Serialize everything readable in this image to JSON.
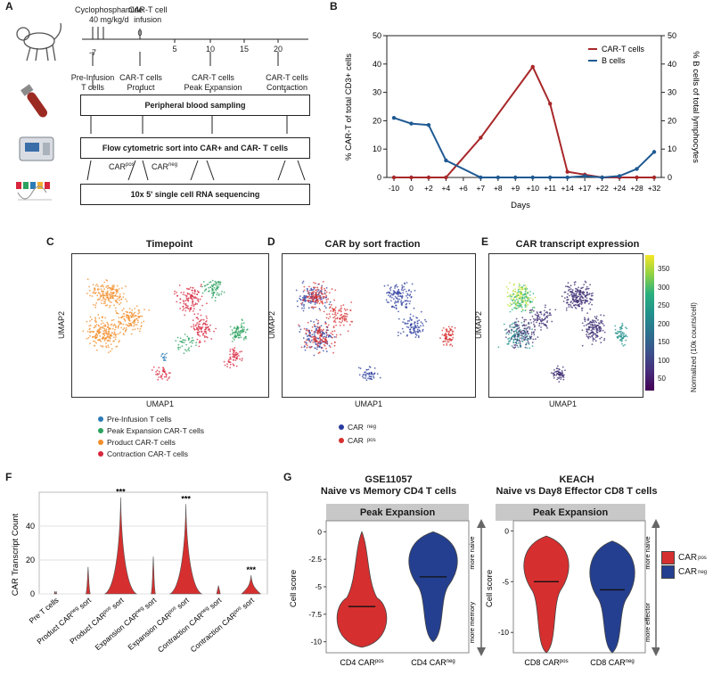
{
  "panels": {
    "A": "A",
    "B": "B",
    "C": "C",
    "D": "D",
    "E": "E",
    "F": "F",
    "G": "G"
  },
  "panel_a": {
    "cyclo_line1": "Cyclophosphamide",
    "cyclo_line2": "40 mg/kg/d",
    "cart_inf_line1": "CAR-T cell",
    "cart_inf_line2": "infusion",
    "ticks": [
      "-7",
      "0",
      "5",
      "10",
      "15",
      "20"
    ],
    "stages": [
      {
        "l1": "Pre-Infusion",
        "l2": "T cells"
      },
      {
        "l1": "CAR-T cells",
        "l2": "Product"
      },
      {
        "l1": "CAR-T cells",
        "l2": "Peak Expansion"
      },
      {
        "l1": "CAR-T cells",
        "l2": "Contraction"
      }
    ],
    "box1": "Peripheral blood sampling",
    "box2": "Flow cytometric sort into CAR+ and CAR- T cells",
    "box3": "10x 5' single cell RNA sequencing",
    "car_pos": "CAR",
    "car_pos_sup": "pos",
    "car_neg": "CAR",
    "car_neg_sup": "neg"
  },
  "chart_data": [
    {
      "id": "B",
      "type": "line",
      "categories": [
        "-10",
        "0",
        "+2",
        "+4",
        "+6",
        "+7",
        "+8",
        "+9",
        "+10",
        "+11",
        "+14",
        "+17",
        "+22",
        "+24",
        "+28",
        "+32"
      ],
      "series": [
        {
          "name": "CAR-T cells",
          "color": "#a8282a",
          "values": [
            0,
            0,
            0,
            0,
            null,
            14,
            null,
            null,
            39,
            26,
            2,
            1,
            0,
            0,
            0,
            0
          ]
        },
        {
          "name": "B cells",
          "color": "#1f5a93",
          "values": [
            21,
            19,
            18.5,
            6,
            null,
            0,
            0,
            0,
            0,
            0,
            0,
            0.5,
            0,
            0.5,
            3,
            9
          ]
        }
      ],
      "xlabel": "Days",
      "ylabel": "% CAR-T of total CD3+ cells",
      "ylabel_right": "% B cells of total lymphocytes",
      "ylim": [
        0,
        50
      ],
      "yticks": [
        0,
        10,
        20,
        30,
        40,
        50
      ],
      "legend": "top-right"
    },
    {
      "id": "F",
      "type": "violin",
      "categories": [
        "Pre T cells",
        "Product CARneg sort",
        "Product CARpos sort",
        "Expansion CARneg sort",
        "Expansion CARpos sort",
        "Contraction CARneg sort",
        "Contraction CARpos sort"
      ],
      "category_labels": [
        {
          "a": "Pre T cells",
          "sup": "",
          "b": ""
        },
        {
          "a": "Product CAR",
          "sup": "neg",
          "b": " sort"
        },
        {
          "a": "Product CAR",
          "sup": "pos",
          "b": " sort"
        },
        {
          "a": "Expansion CAR",
          "sup": "neg",
          "b": " sort"
        },
        {
          "a": "Expansion CAR",
          "sup": "pos",
          "b": " sort"
        },
        {
          "a": "Contraction CAR",
          "sup": "neg",
          "b": " sort"
        },
        {
          "a": "Contraction CAR",
          "sup": "pos",
          "b": " sort"
        }
      ],
      "max_values": [
        0.5,
        16,
        57,
        22,
        53,
        5,
        11
      ],
      "body_width": [
        0.02,
        0.08,
        0.95,
        0.08,
        0.95,
        0.06,
        0.55
      ],
      "significance": [
        "",
        "",
        "***",
        "",
        "***",
        "",
        "***"
      ],
      "ylabel": "CAR Transcript Count",
      "ylim": [
        0,
        60
      ],
      "yticks": [
        0,
        20,
        40
      ],
      "color": "#d62f2f"
    },
    {
      "id": "G1",
      "type": "violin",
      "title_line1": "GSE11057",
      "title_line2": "Naive vs Memory CD4 T cells",
      "strip": "Peak Expansion",
      "ylabel": "Cell score",
      "ylim": [
        -11,
        1
      ],
      "yticks": [
        0,
        -2.5,
        -5,
        -7.5,
        -10
      ],
      "ytick_labels": [
        "0",
        "-2.5",
        "-5",
        "-7.5",
        "-10"
      ],
      "groups": [
        {
          "label": "CD4 CAR",
          "sup": "pos",
          "color": "#d62f2f",
          "min": -10.5,
          "max": 0,
          "median": -6.8
        },
        {
          "label": "CD4 CAR",
          "sup": "neg",
          "color": "#243f8f",
          "min": -10,
          "max": 0,
          "median": -4.1
        }
      ],
      "arrow_top": "more naive",
      "arrow_bottom": "more memory"
    },
    {
      "id": "G2",
      "type": "violin",
      "title_line1": "KEACH",
      "title_line2": "Naive vs Day8 Effector CD8 T cells",
      "strip": "Peak Expansion",
      "ylabel": "Cell score",
      "ylim": [
        -12,
        1
      ],
      "yticks": [
        0,
        -5,
        -10
      ],
      "ytick_labels": [
        "0",
        "-5",
        "-10"
      ],
      "groups": [
        {
          "label": "CD8 CAR",
          "sup": "pos",
          "color": "#d62f2f",
          "min": -12,
          "max": -0.5,
          "median": -5
        },
        {
          "label": "CD8 CAR",
          "sup": "neg",
          "color": "#243f8f",
          "min": -12,
          "max": -1,
          "median": -5.8
        }
      ],
      "arrow_top": "more naive",
      "arrow_bottom": "more effector",
      "legend": [
        {
          "label": "CAR",
          "sup": "pos",
          "color": "#d62f2f"
        },
        {
          "label": "CAR",
          "sup": "neg",
          "color": "#243f8f"
        }
      ]
    }
  ],
  "umap": {
    "c_title": "Timepoint",
    "d_title": "CAR by sort fraction",
    "e_title": "CAR transcript expression",
    "xlabel": "UMAP1",
    "ylabel": "UMAP2",
    "c_legend": [
      {
        "label": "Pre-Infusion T cells",
        "color": "#2c7bb6"
      },
      {
        "label": "Peak Expansion CAR-T cells",
        "color": "#2ca25f"
      },
      {
        "label": "Product CAR-T cells",
        "color": "#f28e2b"
      },
      {
        "label": "Contraction CAR-T cells",
        "color": "#d7263d"
      }
    ],
    "d_legend": [
      {
        "label": "CAR",
        "sup": "neg",
        "color": "#2b3c9e"
      },
      {
        "label": "CAR",
        "sup": "pos",
        "color": "#d62f2f"
      }
    ],
    "colorbar_label": "Normalized (10k counts/cell)",
    "colorbar_ticks": [
      "350",
      "300",
      "250",
      "200",
      "150",
      "100",
      "50"
    ]
  }
}
